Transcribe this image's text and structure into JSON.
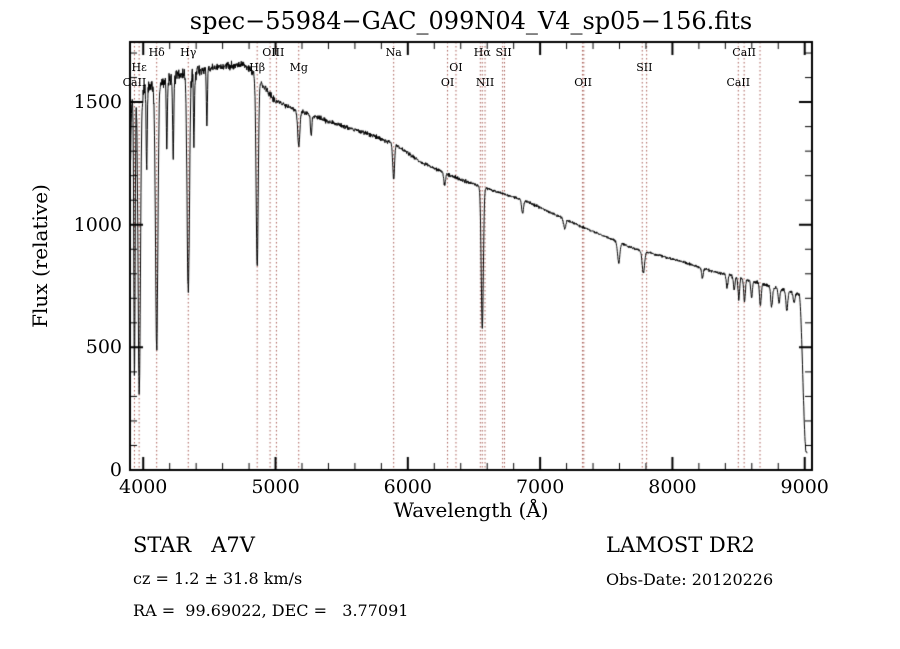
{
  "chart_data": {
    "type": "line",
    "title": "spec−55984−GAC_099N04_V4_sp05−156.fits",
    "xlabel": "Wavelength (Å)",
    "ylabel": "Flux (relative)",
    "xlim": [
      3900,
      9055
    ],
    "ylim": [
      0,
      1745
    ],
    "xticks": [
      4000,
      5000,
      6000,
      7000,
      8000,
      9000
    ],
    "yticks": [
      0,
      500,
      1000,
      1500
    ],
    "x_minor_step": 200,
    "y_minor_step": 100,
    "grid": false,
    "legend": "none",
    "line_color": "#000000",
    "marker_line_color": "#a85c55",
    "data_range": [
      3905,
      9018
    ],
    "continuum": [
      [
        3900,
        1520
      ],
      [
        4000,
        1545
      ],
      [
        4150,
        1580
      ],
      [
        4300,
        1615
      ],
      [
        4450,
        1630
      ],
      [
        4600,
        1645
      ],
      [
        4750,
        1655
      ],
      [
        4820,
        1630
      ],
      [
        4900,
        1570
      ],
      [
        5000,
        1505
      ],
      [
        5150,
        1470
      ],
      [
        5300,
        1440
      ],
      [
        5500,
        1405
      ],
      [
        5700,
        1370
      ],
      [
        5900,
        1330
      ],
      [
        6100,
        1255
      ],
      [
        6300,
        1205
      ],
      [
        6500,
        1165
      ],
      [
        6700,
        1130
      ],
      [
        6900,
        1095
      ],
      [
        7100,
        1045
      ],
      [
        7300,
        995
      ],
      [
        7500,
        950
      ],
      [
        7700,
        905
      ],
      [
        7900,
        875
      ],
      [
        8100,
        845
      ],
      [
        8300,
        810
      ],
      [
        8500,
        785
      ],
      [
        8700,
        755
      ],
      [
        8900,
        725
      ],
      [
        9020,
        705
      ]
    ],
    "absorption_lines": [
      [
        3835,
        0.7,
        8
      ],
      [
        3889,
        0.78,
        9
      ],
      [
        3933.7,
        0.75,
        5
      ],
      [
        3970,
        0.8,
        9
      ],
      [
        4026,
        0.22,
        4
      ],
      [
        4101.7,
        0.68,
        9
      ],
      [
        4178,
        0.18,
        4
      ],
      [
        4226.7,
        0.22,
        4
      ],
      [
        4340.5,
        0.56,
        9
      ],
      [
        4383.5,
        0.18,
        4
      ],
      [
        4481,
        0.14,
        4
      ],
      [
        4861.3,
        0.48,
        8
      ],
      [
        5175.4,
        0.1,
        8
      ],
      [
        5269,
        0.06,
        5
      ],
      [
        5893,
        0.11,
        7
      ],
      [
        6278,
        0.04,
        6
      ],
      [
        6562.8,
        0.5,
        8
      ],
      [
        6867,
        0.05,
        7
      ],
      [
        7186,
        0.04,
        8
      ],
      [
        7594,
        0.09,
        9
      ],
      [
        7780,
        0.1,
        9
      ],
      [
        8227,
        0.05,
        6
      ],
      [
        8413,
        0.07,
        6
      ],
      [
        8467,
        0.07,
        6
      ],
      [
        8502,
        0.11,
        6
      ],
      [
        8545,
        0.12,
        6
      ],
      [
        8598,
        0.09,
        6
      ],
      [
        8665,
        0.12,
        6
      ],
      [
        8750,
        0.11,
        7
      ],
      [
        8806,
        0.08,
        6
      ],
      [
        8865,
        0.11,
        7
      ],
      [
        8920,
        0.06,
        6
      ]
    ],
    "red_edge_drop": {
      "start": 8958,
      "end": 9012,
      "floor_fraction": 0.1
    },
    "noise_profile": [
      [
        4450,
        42
      ],
      [
        5000,
        24
      ],
      [
        5800,
        14
      ],
      [
        6500,
        11
      ],
      [
        8400,
        8
      ],
      [
        9030,
        10
      ]
    ],
    "spectral_markers": [
      {
        "wl": 3933.7,
        "label": "CaII",
        "row": 2,
        "line": true
      },
      {
        "wl": 3969.0,
        "label": "Hε",
        "row": 1,
        "line": true
      },
      {
        "wl": 4101.7,
        "label": "Hδ",
        "row": 0,
        "line": true
      },
      {
        "wl": 4340.5,
        "label": "Hγ",
        "row": 0,
        "line": true
      },
      {
        "wl": 4861.3,
        "label": "Hβ",
        "row": 1,
        "line": true
      },
      {
        "wl": 4958.9,
        "label": "",
        "row": 0,
        "line": true
      },
      {
        "wl": 4983.0,
        "label": "OIII",
        "row": 0,
        "line": false
      },
      {
        "wl": 5006.8,
        "label": "",
        "row": 0,
        "line": true
      },
      {
        "wl": 5175.4,
        "label": "Mg",
        "row": 1,
        "line": true
      },
      {
        "wl": 5893.0,
        "label": "Na",
        "row": 0,
        "line": true
      },
      {
        "wl": 6300.2,
        "label": "OI",
        "row": 2,
        "line": true
      },
      {
        "wl": 6363.9,
        "label": "OI",
        "row": 1,
        "line": true
      },
      {
        "wl": 6548.1,
        "label": "",
        "row": 0,
        "line": true
      },
      {
        "wl": 6562.8,
        "label": "Hα",
        "row": 0,
        "line": true
      },
      {
        "wl": 6583.6,
        "label": "NII",
        "row": 2,
        "line": true
      },
      {
        "wl": 6716.4,
        "label": "",
        "row": 0,
        "line": true
      },
      {
        "wl": 6724.0,
        "label": "SII",
        "row": 0,
        "line": false
      },
      {
        "wl": 6730.8,
        "label": "",
        "row": 0,
        "line": true
      },
      {
        "wl": 7320.0,
        "label": "",
        "row": 0,
        "line": true
      },
      {
        "wl": 7325.0,
        "label": "OII",
        "row": 2,
        "line": false
      },
      {
        "wl": 7330.0,
        "label": "",
        "row": 0,
        "line": true
      },
      {
        "wl": 7772.0,
        "label": "",
        "row": 0,
        "line": true
      },
      {
        "wl": 7788.0,
        "label": "SII",
        "row": 1,
        "line": false
      },
      {
        "wl": 7805.0,
        "label": "",
        "row": 0,
        "line": true
      },
      {
        "wl": 8498.0,
        "label": "CaII",
        "row": 2,
        "line": true
      },
      {
        "wl": 8542.1,
        "label": "CaII",
        "row": 0,
        "line": true
      },
      {
        "wl": 8662.1,
        "label": "",
        "row": 0,
        "line": true
      }
    ]
  },
  "footer": {
    "classification": "STAR   A7V",
    "survey": "LAMOST DR2",
    "cz": "cz = 1.2 ± 31.8 km/s",
    "obs_date": "Obs-Date: 20120226",
    "ra_dec": "RA =  99.69022, DEC =   3.77091"
  }
}
